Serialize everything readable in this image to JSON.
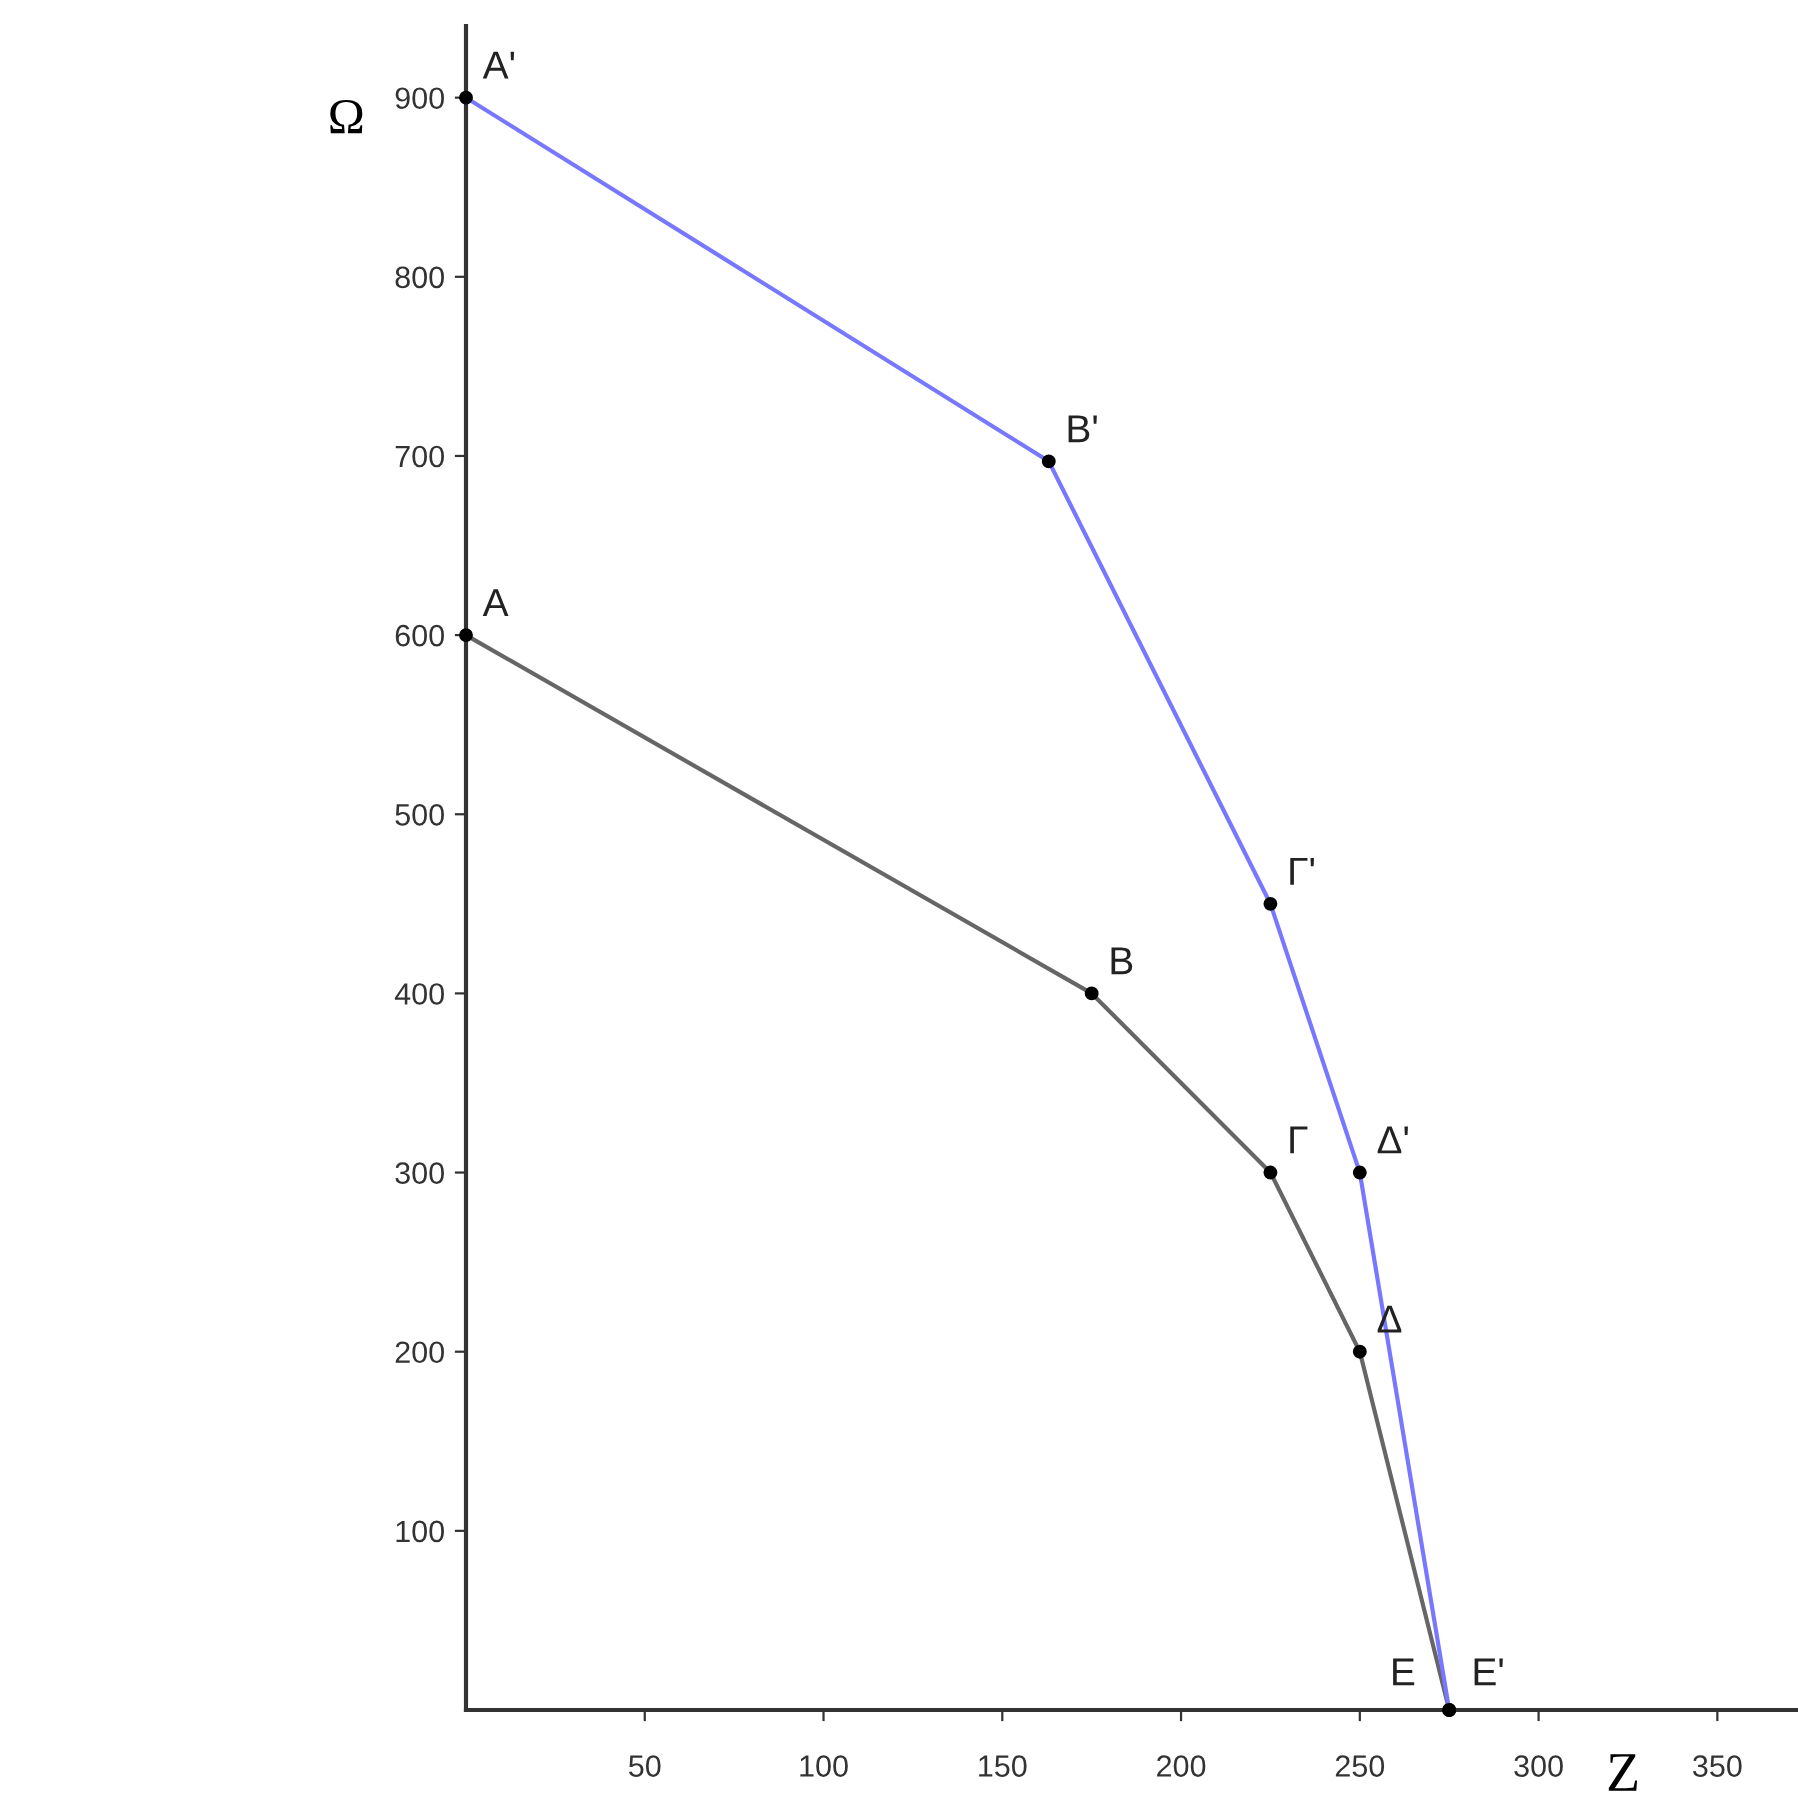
{
  "chart_data": {
    "type": "line",
    "xlabel": "Z",
    "ylabel": "Ω",
    "xlim": [
      0,
      372
    ],
    "ylim": [
      0,
      940
    ],
    "xticks": [
      50,
      100,
      150,
      200,
      250,
      300,
      350
    ],
    "yticks": [
      100,
      200,
      300,
      400,
      500,
      600,
      700,
      800,
      900
    ],
    "grid": false,
    "legend": false,
    "marker": "circle",
    "line_style": "solid",
    "series": [
      {
        "color": "#666666",
        "x": [
          0,
          175,
          225,
          250,
          275
        ],
        "values": [
          600,
          400,
          300,
          200,
          0
        ]
      },
      {
        "color": "#7777ff",
        "x": [
          0,
          163,
          225,
          250,
          275
        ],
        "values": [
          900,
          697,
          450,
          300,
          0
        ]
      }
    ],
    "annotations": [
      {
        "text": "A",
        "x": 0,
        "y": 600
      },
      {
        "text": "B",
        "x": 175,
        "y": 400
      },
      {
        "text": "Γ",
        "x": 225,
        "y": 300
      },
      {
        "text": "Δ",
        "x": 250,
        "y": 200
      },
      {
        "text": "E",
        "x": 275,
        "y": 0
      },
      {
        "text": "A'",
        "x": 0,
        "y": 900
      },
      {
        "text": "B'",
        "x": 163,
        "y": 697
      },
      {
        "text": "Γ'",
        "x": 225,
        "y": 450
      },
      {
        "text": "Δ'",
        "x": 250,
        "y": 300
      },
      {
        "text": "E'",
        "x": 275,
        "y": 0
      }
    ]
  }
}
